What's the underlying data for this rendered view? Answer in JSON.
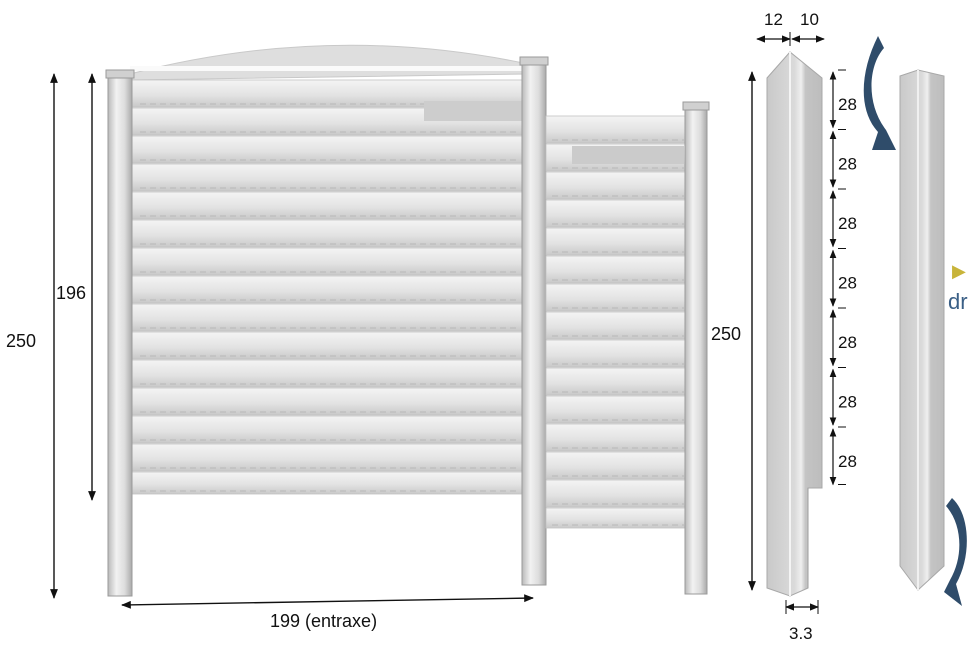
{
  "dimensions": {
    "panel_height": "196",
    "post_height_left": "250",
    "post_height_right": "250",
    "span": "199 (entraxe)",
    "post_width_a": "12",
    "post_width_b": "10",
    "slot_depth": "3.3",
    "spacing": [
      "28",
      "28",
      "28",
      "28",
      "28",
      "28",
      "28"
    ]
  },
  "cropped_label": {
    "arrow_glyph": "▶",
    "text": "dr"
  },
  "colors": {
    "concrete": "#e2e2e2",
    "post": "#d6d6d6",
    "rotate_arrow": "#2f4c6a",
    "label": "#3a5f86",
    "pointer": "#c8b43a"
  },
  "icons": {
    "rotate_top": "curved-arrow-icon",
    "rotate_bottom": "curved-arrow-icon"
  }
}
